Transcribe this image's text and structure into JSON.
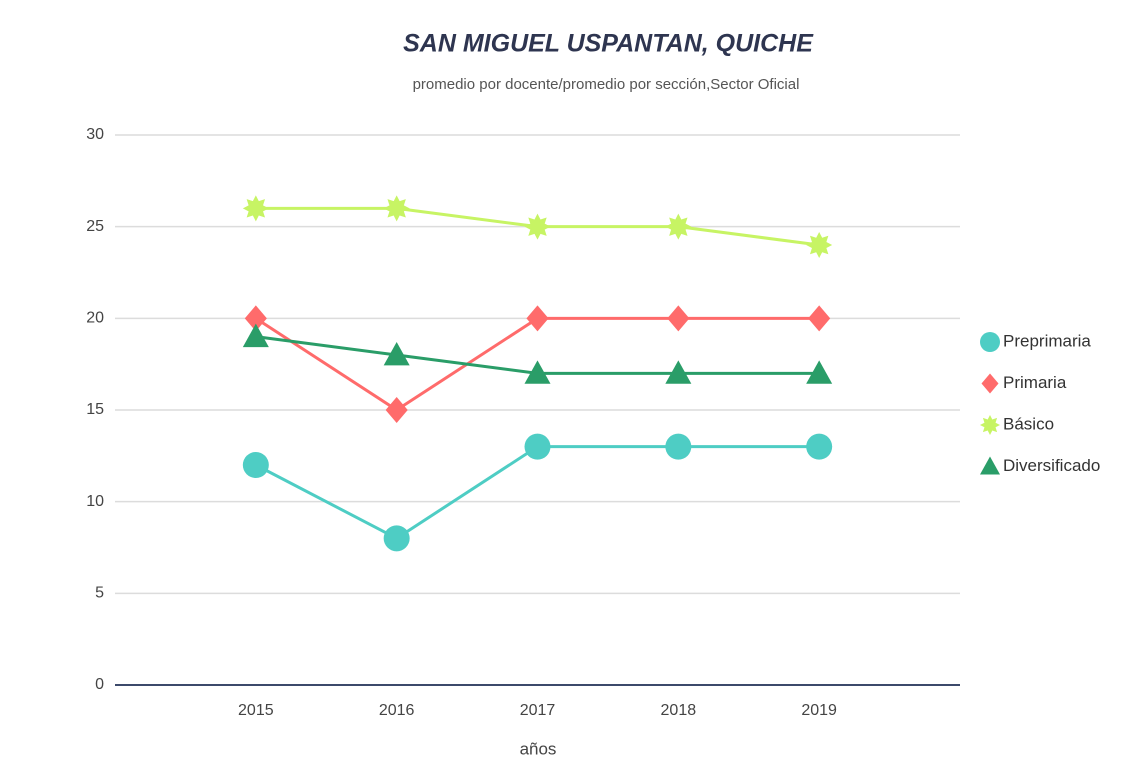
{
  "chart_data": {
    "type": "line",
    "title": "SAN MIGUEL USPANTAN, QUICHE",
    "subtitle": "promedio por docente/promedio por sección,Sector Oficial",
    "x_label": "años",
    "categories": [
      "2015",
      "2016",
      "2017",
      "2018",
      "2019"
    ],
    "ylim": [
      0,
      30
    ],
    "yticks": [
      0,
      5,
      10,
      15,
      20,
      25,
      30
    ],
    "grid": true,
    "legend": "right",
    "series": [
      {
        "name": "Preprimaria",
        "color": "#4ecdc4",
        "marker": "circle",
        "values": [
          12,
          8,
          13,
          13,
          13
        ]
      },
      {
        "name": "Primaria",
        "color": "#ff6b6b",
        "marker": "diamond",
        "values": [
          20,
          15,
          20,
          20,
          20
        ]
      },
      {
        "name": "Básico",
        "color": "#c7f464",
        "marker": "star",
        "values": [
          26,
          26,
          25,
          25,
          24
        ]
      },
      {
        "name": "Diversificado",
        "color": "#2a9d68",
        "marker": "triangle",
        "values": [
          19,
          18,
          17,
          17,
          17
        ]
      }
    ]
  }
}
